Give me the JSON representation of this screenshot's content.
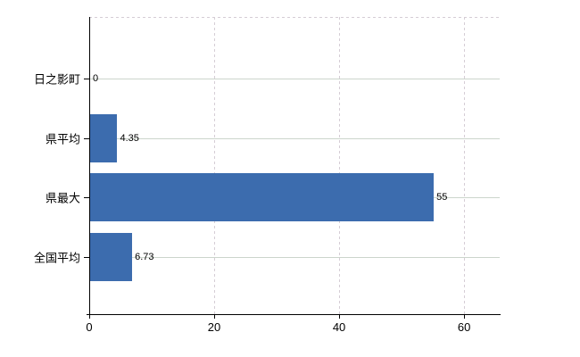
{
  "chart_data": {
    "type": "bar",
    "orientation": "horizontal",
    "title": "",
    "xlabel": "",
    "ylabel": "",
    "categories": [
      "日之影町",
      "県平均",
      "県最大",
      "全国平均"
    ],
    "values": [
      0,
      4.35,
      55,
      6.73
    ],
    "value_labels": [
      "0",
      "4.35",
      "55",
      "6.73"
    ],
    "x_ticks": [
      0,
      20,
      40,
      60
    ],
    "x_tick_labels": [
      "0",
      "20",
      "40",
      "60"
    ],
    "xlim": [
      0,
      65.7
    ],
    "grid": true,
    "legend": false,
    "colors": {
      "bar": "#3c6cae",
      "axis": "#000000",
      "grid_horizontal": "#ccd5cc",
      "grid_vertical_dashed": "#d5cdd5",
      "text": "#000000",
      "background": "#ffffff"
    }
  }
}
